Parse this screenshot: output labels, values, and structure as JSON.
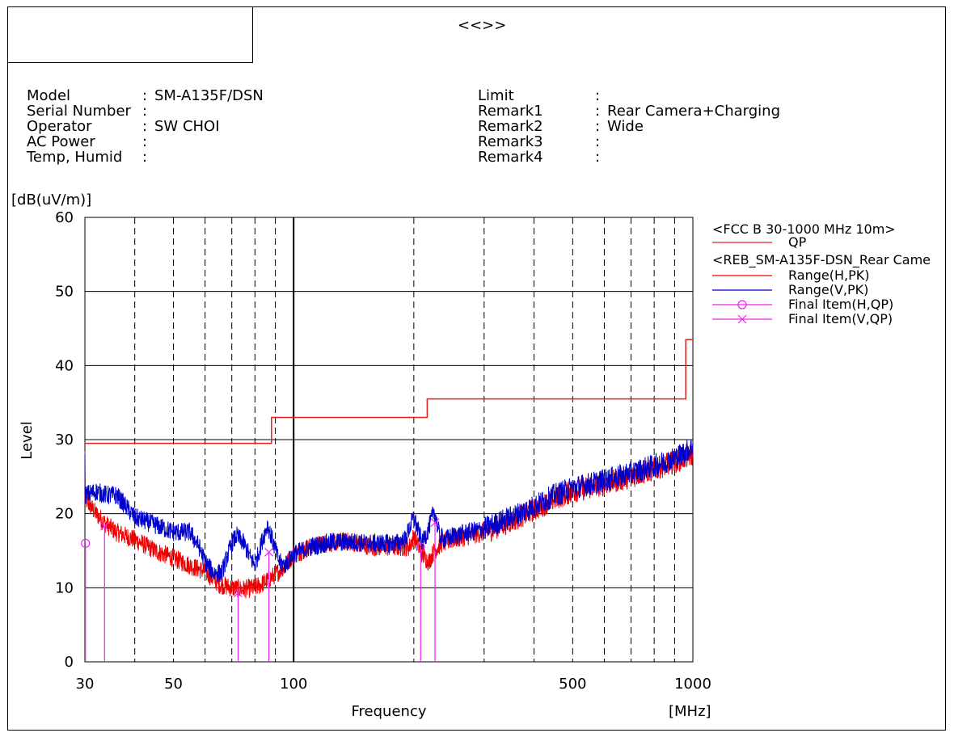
{
  "header": {
    "title": "<<>>",
    "left_box_text": ""
  },
  "info": {
    "left": [
      {
        "label": "Model",
        "sep": ":",
        "value": "SM-A135F/DSN"
      },
      {
        "label": "Serial Number",
        "sep": ":",
        "value": ""
      },
      {
        "label": "Operator",
        "sep": ":",
        "value": "SW CHOI"
      },
      {
        "label": "AC Power",
        "sep": ":",
        "value": ""
      },
      {
        "label": "Temp, Humid",
        "sep": ":",
        "value": ""
      }
    ],
    "right": [
      {
        "label": "Limit",
        "sep": ":",
        "value": ""
      },
      {
        "label": "Remark1",
        "sep": ":",
        "value": "Rear Camera+Charging"
      },
      {
        "label": "Remark2",
        "sep": ":",
        "value": "Wide"
      },
      {
        "label": "Remark3",
        "sep": ":",
        "value": ""
      },
      {
        "label": "Remark4",
        "sep": ":",
        "value": ""
      }
    ]
  },
  "colors": {
    "limit": "#e02020",
    "horizontal": "#ee0000",
    "vertical": "#0000cc",
    "final": "#ee22ee",
    "grid": "#000000"
  },
  "chart_data": {
    "type": "line",
    "xscale": "log",
    "xlim": [
      30,
      1000
    ],
    "ylim": [
      0,
      60
    ],
    "ylabel": "Level",
    "yunit": "[dB(uV/m)]",
    "xlabel": "Frequency",
    "xunit": "[MHz]",
    "xticks": [
      30,
      50,
      100,
      500,
      1000
    ],
    "yticks": [
      0,
      10,
      20,
      30,
      40,
      50,
      60
    ],
    "legend": {
      "group1_title": "<FCC B 30-1000 MHz 10m>",
      "group2_title": "<REB_SM-A135F-DSN_Rear Came",
      "entries": [
        {
          "name": "QP",
          "marker": "line",
          "color": "#e02020"
        },
        {
          "name": "Range(H,PK)",
          "marker": "line",
          "color": "#ee0000"
        },
        {
          "name": "Range(V,PK)",
          "marker": "line",
          "color": "#0000cc"
        },
        {
          "name": "Final Item(H,QP)",
          "marker": "circle",
          "color": "#ee22ee"
        },
        {
          "name": "Final Item(V,QP)",
          "marker": "cross",
          "color": "#ee22ee"
        }
      ]
    },
    "limit_qp": [
      {
        "x": 30,
        "y": 29.5
      },
      {
        "x": 88,
        "y": 29.5
      },
      {
        "x": 88,
        "y": 33.0
      },
      {
        "x": 216,
        "y": 33.0
      },
      {
        "x": 216,
        "y": 35.5
      },
      {
        "x": 960,
        "y": 35.5
      },
      {
        "x": 960,
        "y": 43.5
      },
      {
        "x": 1000,
        "y": 43.5
      }
    ],
    "series": [
      {
        "name": "Range(H,PK)",
        "points": [
          [
            30,
            22
          ],
          [
            32,
            20
          ],
          [
            34,
            18.5
          ],
          [
            36,
            17.5
          ],
          [
            40,
            16.5
          ],
          [
            45,
            15
          ],
          [
            50,
            14
          ],
          [
            55,
            13
          ],
          [
            60,
            12.2
          ],
          [
            65,
            10.5
          ],
          [
            70,
            10
          ],
          [
            75,
            9.8
          ],
          [
            80,
            10
          ],
          [
            85,
            10.8
          ],
          [
            90,
            11.8
          ],
          [
            95,
            13
          ],
          [
            100,
            14.5
          ],
          [
            110,
            15.5
          ],
          [
            120,
            16
          ],
          [
            130,
            16.2
          ],
          [
            140,
            16.2
          ],
          [
            150,
            15.8
          ],
          [
            160,
            15.5
          ],
          [
            170,
            15.5
          ],
          [
            180,
            15.5
          ],
          [
            195,
            15.5
          ],
          [
            200,
            17
          ],
          [
            210,
            14.5
          ],
          [
            218,
            13.5
          ],
          [
            225,
            15
          ],
          [
            235,
            16
          ],
          [
            250,
            16.5
          ],
          [
            275,
            17
          ],
          [
            300,
            17.5
          ],
          [
            350,
            19
          ],
          [
            400,
            20.5
          ],
          [
            450,
            22
          ],
          [
            500,
            23
          ],
          [
            550,
            23.5
          ],
          [
            600,
            24
          ],
          [
            700,
            25
          ],
          [
            800,
            26
          ],
          [
            900,
            27
          ],
          [
            1000,
            28
          ]
        ]
      },
      {
        "name": "Range(V,PK)",
        "points": [
          [
            30,
            22.5
          ],
          [
            32,
            23
          ],
          [
            34,
            22.5
          ],
          [
            36,
            22.5
          ],
          [
            38,
            21
          ],
          [
            40,
            19.5
          ],
          [
            45,
            18.5
          ],
          [
            50,
            17.5
          ],
          [
            55,
            17.5
          ],
          [
            58,
            15.5
          ],
          [
            60,
            13.5
          ],
          [
            63,
            12
          ],
          [
            66,
            12
          ],
          [
            70,
            16
          ],
          [
            72,
            17
          ],
          [
            75,
            16
          ],
          [
            78,
            14
          ],
          [
            80,
            13
          ],
          [
            83,
            16
          ],
          [
            86,
            18.5
          ],
          [
            89,
            16
          ],
          [
            92,
            13.5
          ],
          [
            95,
            13
          ],
          [
            100,
            14.5
          ],
          [
            110,
            15.5
          ],
          [
            120,
            16
          ],
          [
            130,
            16.2
          ],
          [
            140,
            16.2
          ],
          [
            150,
            16
          ],
          [
            160,
            16
          ],
          [
            170,
            16
          ],
          [
            180,
            16
          ],
          [
            190,
            16.5
          ],
          [
            200,
            19.5
          ],
          [
            210,
            16
          ],
          [
            218,
            18
          ],
          [
            225,
            20.5
          ],
          [
            232,
            17
          ],
          [
            240,
            16.5
          ],
          [
            250,
            17
          ],
          [
            275,
            17.5
          ],
          [
            300,
            18
          ],
          [
            350,
            19.5
          ],
          [
            400,
            21
          ],
          [
            450,
            22.5
          ],
          [
            500,
            23.5
          ],
          [
            550,
            24
          ],
          [
            600,
            24.5
          ],
          [
            700,
            25.5
          ],
          [
            800,
            26.5
          ],
          [
            900,
            27.5
          ],
          [
            1000,
            29
          ]
        ]
      }
    ],
    "final_items": [
      {
        "name": "Final Item(H,QP)",
        "marker": "circle",
        "points": [
          {
            "x": 30.1,
            "y": 16.0
          },
          {
            "x": 208.0,
            "y": 15.5
          }
        ]
      },
      {
        "name": "Final Item(V,QP)",
        "marker": "cross",
        "points": [
          {
            "x": 33.6,
            "y": 18.3
          },
          {
            "x": 72.6,
            "y": 9.3
          },
          {
            "x": 86.7,
            "y": 14.8
          },
          {
            "x": 226.0,
            "y": 18.8
          }
        ]
      }
    ]
  }
}
